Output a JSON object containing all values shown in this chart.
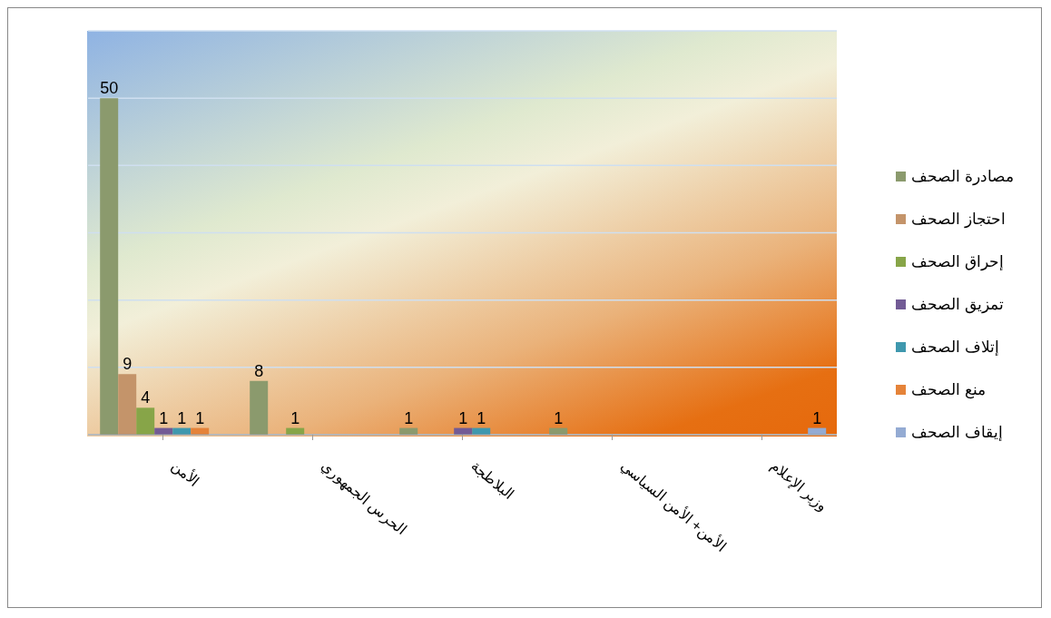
{
  "chart_data": {
    "type": "bar",
    "categories": [
      "الأمن",
      "الحرس الجمهوري",
      "البلاطجة",
      "الأمن+ الأمن السياسي",
      "وزير الإعلام"
    ],
    "series": [
      {
        "name": "مصادرة الصحف",
        "color": "#8b9a6d",
        "values": [
          50,
          8,
          1,
          1,
          null
        ]
      },
      {
        "name": "احتجاز الصحف",
        "color": "#c4946a",
        "values": [
          9,
          null,
          null,
          null,
          null
        ]
      },
      {
        "name": "إحراق الصحف",
        "color": "#87a548",
        "values": [
          4,
          1,
          null,
          null,
          null
        ]
      },
      {
        "name": "تمزيق الصحف",
        "color": "#725b95",
        "values": [
          1,
          null,
          1,
          null,
          null
        ]
      },
      {
        "name": "إتلاف الصحف",
        "color": "#3f98ae",
        "values": [
          1,
          null,
          1,
          null,
          null
        ]
      },
      {
        "name": "منع الصحف",
        "color": "#e58339",
        "values": [
          1,
          null,
          null,
          null,
          null
        ]
      },
      {
        "name": "إيقاف الصحف",
        "color": "#94abd3",
        "values": [
          null,
          null,
          null,
          null,
          1
        ]
      }
    ],
    "ylim": [
      0,
      60
    ],
    "tick_labels": "x",
    "grid": "y",
    "legend": "right",
    "data_labels": true
  }
}
